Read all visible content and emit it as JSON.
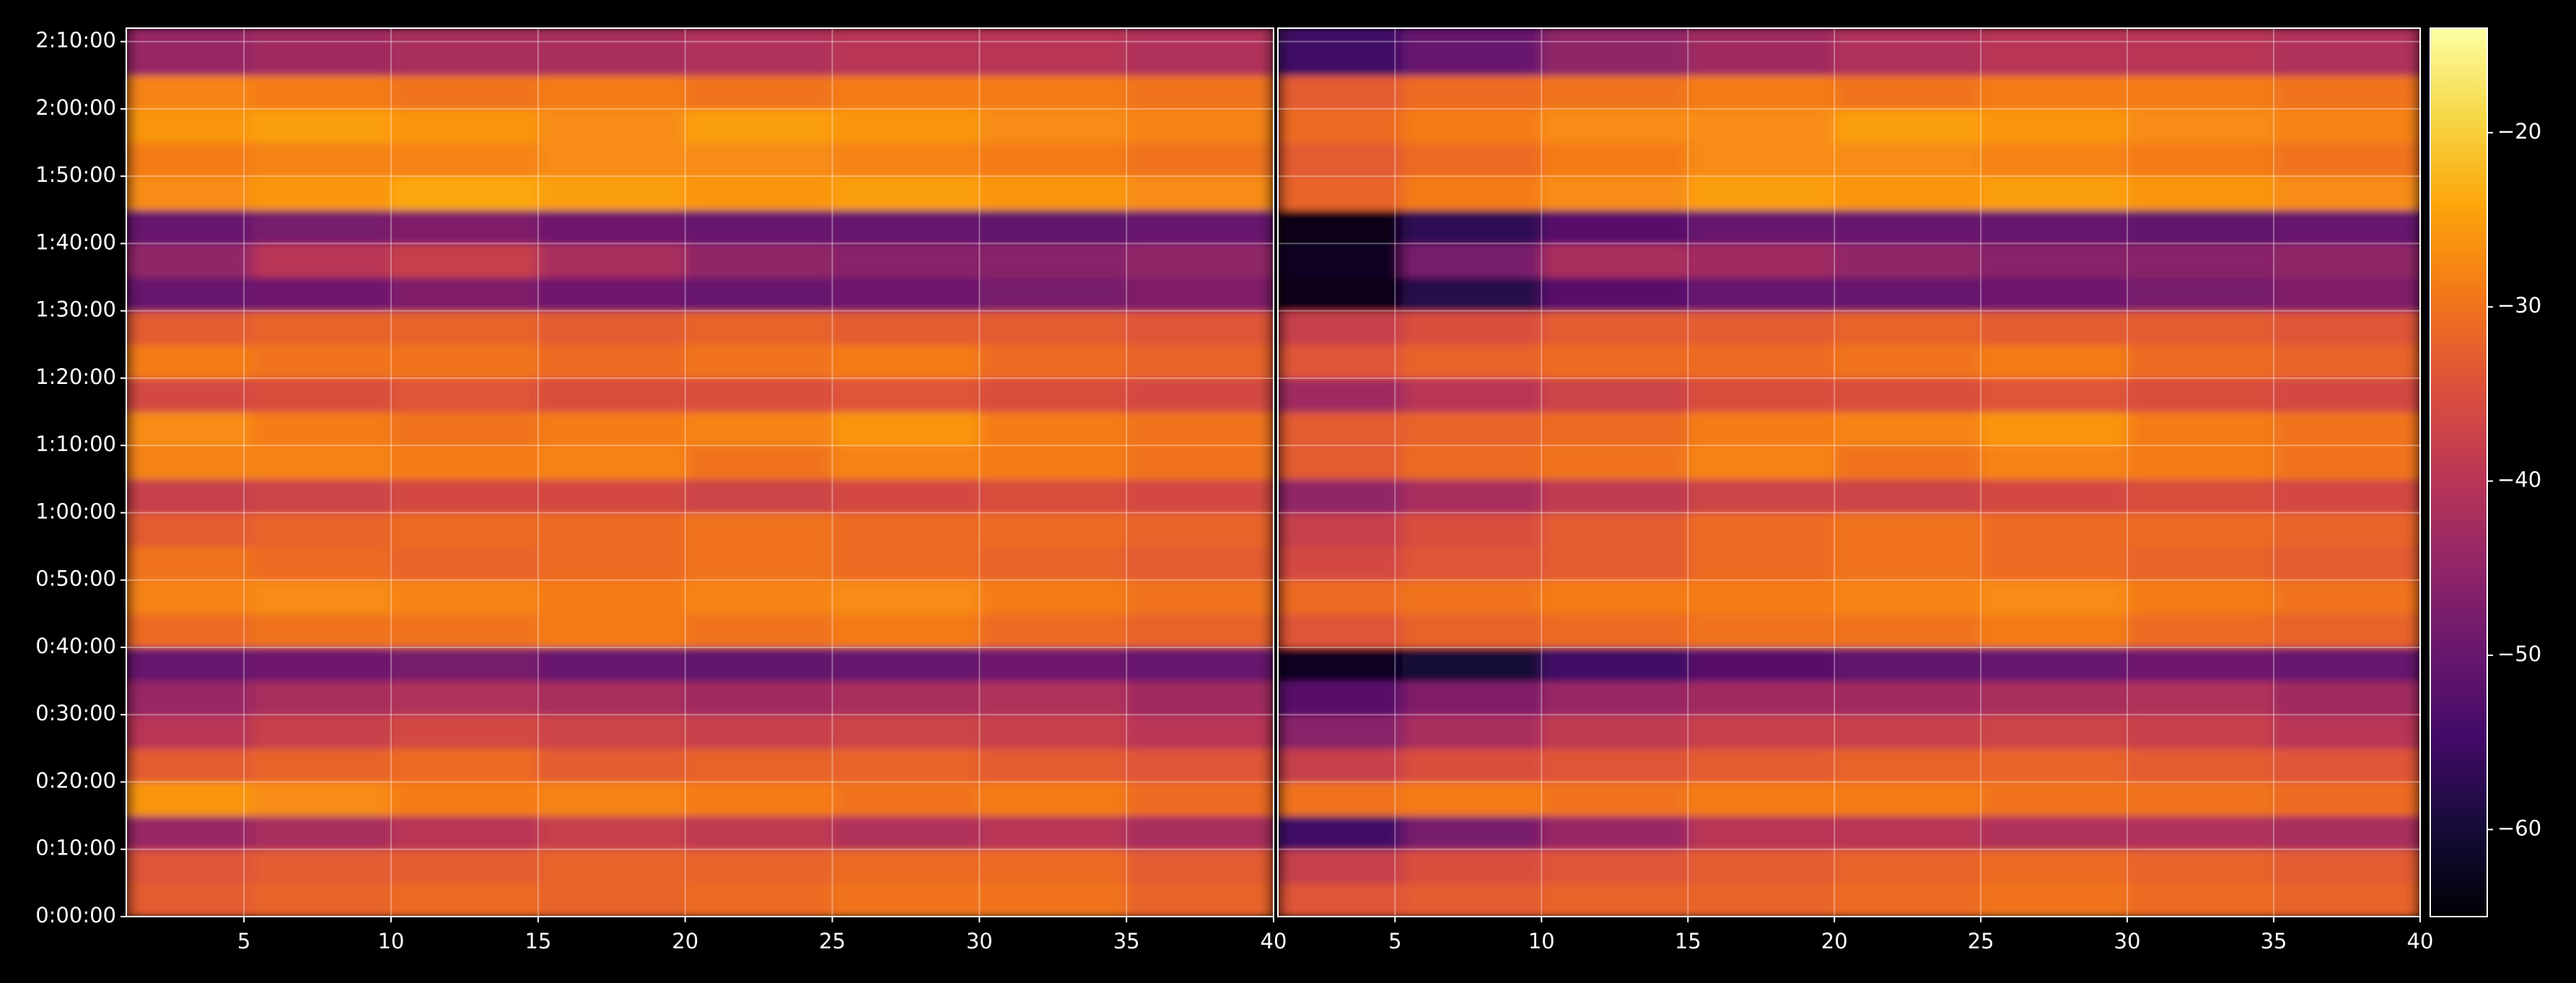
{
  "chart_data": [
    {
      "type": "heatmap",
      "colormap": "inferno",
      "x": [
        3,
        7.5,
        12.5,
        17.5,
        22.5,
        27.5,
        32.5,
        37.5
      ],
      "y": [
        150,
        450,
        750,
        1050,
        1350,
        1650,
        1950,
        2250,
        2550,
        2850,
        3150,
        3450,
        3750,
        4050,
        4350,
        4650,
        4950,
        5250,
        5550,
        5850,
        6150,
        6450,
        6750,
        7050,
        7350,
        7650
      ],
      "z": [
        [
          -33,
          -32,
          -31,
          -32,
          -31,
          -30,
          -30,
          -32
        ],
        [
          -34,
          -33,
          -33,
          -32,
          -32,
          -31,
          -31,
          -33
        ],
        [
          -44,
          -42,
          -40,
          -38,
          -39,
          -41,
          -40,
          -42
        ],
        [
          -26,
          -27,
          -29,
          -28,
          -29,
          -30,
          -29,
          -31
        ],
        [
          -33,
          -32,
          -31,
          -33,
          -32,
          -32,
          -33,
          -34
        ],
        [
          -40,
          -38,
          -36,
          -37,
          -38,
          -37,
          -38,
          -40
        ],
        [
          -44,
          -42,
          -41,
          -42,
          -43,
          -42,
          -41,
          -43
        ],
        [
          -50,
          -49,
          -48,
          -50,
          -51,
          -50,
          -49,
          -50
        ],
        [
          -31,
          -30,
          -30,
          -29,
          -30,
          -29,
          -31,
          -32
        ],
        [
          -28,
          -27,
          -28,
          -29,
          -28,
          -27,
          -29,
          -30
        ],
        [
          -30,
          -31,
          -32,
          -31,
          -30,
          -31,
          -32,
          -33
        ],
        [
          -33,
          -32,
          -31,
          -31,
          -30,
          -31,
          -31,
          -32
        ],
        [
          -38,
          -37,
          -36,
          -36,
          -37,
          -36,
          -35,
          -36
        ],
        [
          -28,
          -28,
          -29,
          -28,
          -30,
          -28,
          -29,
          -30
        ],
        [
          -27,
          -29,
          -30,
          -29,
          -28,
          -26,
          -29,
          -30
        ],
        [
          -36,
          -35,
          -34,
          -35,
          -35,
          -34,
          -35,
          -36
        ],
        [
          -29,
          -30,
          -30,
          -31,
          -30,
          -29,
          -31,
          -32
        ],
        [
          -33,
          -32,
          -32,
          -33,
          -32,
          -33,
          -33,
          -34
        ],
        [
          -50,
          -49,
          -47,
          -49,
          -50,
          -49,
          -48,
          -47
        ],
        [
          -45,
          -40,
          -38,
          -42,
          -45,
          -46,
          -46,
          -45
        ],
        [
          -50,
          -48,
          -47,
          -49,
          -50,
          -50,
          -51,
          -50
        ],
        [
          -27,
          -26,
          -24,
          -25,
          -26,
          -25,
          -26,
          -27
        ],
        [
          -29,
          -28,
          -28,
          -27,
          -27,
          -28,
          -29,
          -30
        ],
        [
          -26,
          -25,
          -26,
          -27,
          -25,
          -26,
          -27,
          -28
        ],
        [
          -28,
          -29,
          -30,
          -29,
          -30,
          -29,
          -29,
          -30
        ],
        [
          -44,
          -43,
          -42,
          -42,
          -41,
          -40,
          -40,
          -41
        ]
      ],
      "xlim": [
        1,
        40
      ],
      "xticks": [
        5,
        10,
        15,
        20,
        25,
        30,
        35,
        40
      ],
      "ylim": [
        0,
        7920
      ],
      "yticks": [
        {
          "value": 0,
          "label": "0:00:00"
        },
        {
          "value": 600,
          "label": "0:10:00"
        },
        {
          "value": 1200,
          "label": "0:20:00"
        },
        {
          "value": 1800,
          "label": "0:30:00"
        },
        {
          "value": 2400,
          "label": "0:40:00"
        },
        {
          "value": 3000,
          "label": "0:50:00"
        },
        {
          "value": 3600,
          "label": "1:00:00"
        },
        {
          "value": 4200,
          "label": "1:10:00"
        },
        {
          "value": 4800,
          "label": "1:20:00"
        },
        {
          "value": 5400,
          "label": "1:30:00"
        },
        {
          "value": 6000,
          "label": "1:40:00"
        },
        {
          "value": 6600,
          "label": "1:50:00"
        },
        {
          "value": 7200,
          "label": "2:00:00"
        },
        {
          "value": 7800,
          "label": "2:10:00"
        }
      ],
      "grid": true
    },
    {
      "type": "heatmap",
      "colormap": "inferno",
      "sharey": true,
      "x": [
        3,
        7.5,
        12.5,
        17.5,
        22.5,
        27.5,
        32.5,
        37.5
      ],
      "y": [
        150,
        450,
        750,
        1050,
        1350,
        1650,
        1950,
        2250,
        2550,
        2850,
        3150,
        3450,
        3750,
        4050,
        4350,
        4650,
        4950,
        5250,
        5550,
        5850,
        6150,
        6450,
        6750,
        7050,
        7350,
        7650
      ],
      "z": [
        [
          -34,
          -33,
          -32,
          -32,
          -31,
          -30,
          -31,
          -32
        ],
        [
          -38,
          -35,
          -34,
          -33,
          -32,
          -31,
          -32,
          -33
        ],
        [
          -55,
          -48,
          -44,
          -40,
          -40,
          -41,
          -41,
          -42
        ],
        [
          -30,
          -29,
          -30,
          -29,
          -29,
          -30,
          -30,
          -31
        ],
        [
          -38,
          -35,
          -34,
          -33,
          -32,
          -32,
          -33,
          -34
        ],
        [
          -46,
          -42,
          -39,
          -38,
          -38,
          -37,
          -38,
          -40
        ],
        [
          -52,
          -47,
          -44,
          -43,
          -43,
          -42,
          -41,
          -43
        ],
        [
          -62,
          -60,
          -55,
          -52,
          -51,
          -50,
          -49,
          -50
        ],
        [
          -34,
          -32,
          -31,
          -30,
          -30,
          -29,
          -31,
          -32
        ],
        [
          -31,
          -30,
          -29,
          -29,
          -28,
          -27,
          -29,
          -30
        ],
        [
          -36,
          -34,
          -33,
          -31,
          -30,
          -31,
          -32,
          -33
        ],
        [
          -38,
          -35,
          -33,
          -31,
          -30,
          -31,
          -31,
          -32
        ],
        [
          -45,
          -42,
          -39,
          -37,
          -37,
          -36,
          -35,
          -36
        ],
        [
          -33,
          -31,
          -30,
          -28,
          -30,
          -28,
          -29,
          -30
        ],
        [
          -33,
          -32,
          -31,
          -29,
          -28,
          -26,
          -29,
          -30
        ],
        [
          -43,
          -40,
          -37,
          -35,
          -35,
          -34,
          -35,
          -36
        ],
        [
          -34,
          -32,
          -31,
          -31,
          -30,
          -29,
          -31,
          -32
        ],
        [
          -38,
          -35,
          -33,
          -33,
          -32,
          -33,
          -33,
          -34
        ],
        [
          -63,
          -58,
          -52,
          -50,
          -50,
          -49,
          -48,
          -47
        ],
        [
          -62,
          -48,
          -42,
          -43,
          -45,
          -46,
          -46,
          -45
        ],
        [
          -63,
          -57,
          -52,
          -50,
          -50,
          -50,
          -51,
          -50
        ],
        [
          -32,
          -29,
          -27,
          -25,
          -26,
          -25,
          -26,
          -27
        ],
        [
          -33,
          -31,
          -29,
          -27,
          -27,
          -28,
          -29,
          -30
        ],
        [
          -31,
          -29,
          -27,
          -27,
          -25,
          -26,
          -27,
          -28
        ],
        [
          -33,
          -31,
          -30,
          -29,
          -30,
          -29,
          -29,
          -30
        ],
        [
          -55,
          -50,
          -45,
          -43,
          -41,
          -40,
          -40,
          -41
        ]
      ],
      "xlim": [
        1,
        40
      ],
      "xticks": [
        5,
        10,
        15,
        20,
        25,
        30,
        35,
        40
      ],
      "ylim": [
        0,
        7920
      ],
      "grid": true
    }
  ],
  "colorbar": {
    "colormap": "inferno",
    "clim": [
      -65,
      -14
    ],
    "ticks": [
      {
        "value": -20,
        "label": "−20"
      },
      {
        "value": -30,
        "label": "−30"
      },
      {
        "value": -40,
        "label": "−40"
      },
      {
        "value": -50,
        "label": "−50"
      },
      {
        "value": -60,
        "label": "−60"
      }
    ]
  }
}
